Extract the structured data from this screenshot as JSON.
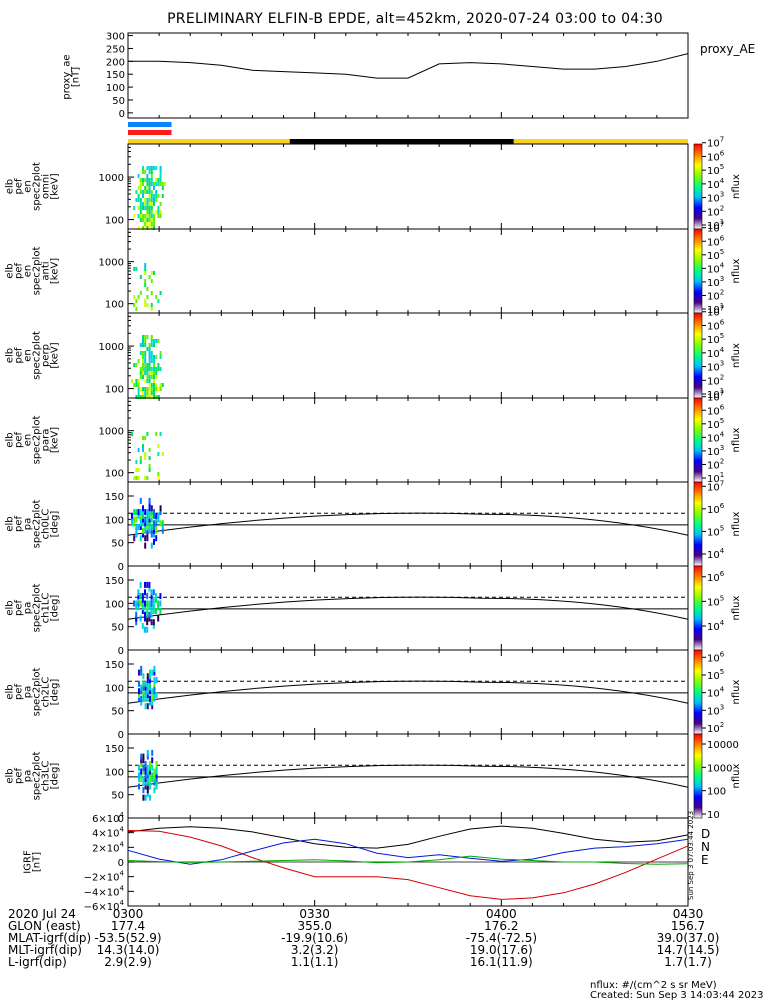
{
  "title": "PRELIMINARY ELFIN-B EPDE, alt=452km, 2020-07-24 03:00 to 04:30",
  "colors": {
    "sci_blue": "#0a84ff",
    "sci_red": "#ff1a1a",
    "day": "#f7d21e",
    "night": "#000000",
    "grf_d": "#d40000",
    "grf_n": "#0018d4",
    "grf_e": "#00aa00",
    "grf_total": "#000000"
  },
  "panels": {
    "proxy_ae": {
      "ylabel_lines": [
        "proxy_ae",
        "[nT]"
      ],
      "legend": "proxy_AE"
    },
    "spec_panels": [
      {
        "ylabel_lines": [
          "elb",
          "pef",
          "en",
          "spec2plot",
          "omni",
          "[keV]"
        ]
      },
      {
        "ylabel_lines": [
          "elb",
          "pef",
          "en",
          "spec2plot",
          "anti",
          "[keV]"
        ]
      },
      {
        "ylabel_lines": [
          "elb",
          "pef",
          "en",
          "spec2plot",
          "perp",
          "[keV]"
        ]
      },
      {
        "ylabel_lines": [
          "elb",
          "pef",
          "en",
          "spec2plot",
          "para",
          "[keV]"
        ]
      }
    ],
    "pa_panels": [
      {
        "ylabel_lines": [
          "elb",
          "pef",
          "pa",
          "spec2plot",
          "ch0LC",
          "[deg]"
        ]
      },
      {
        "ylabel_lines": [
          "elb",
          "pef",
          "pa",
          "spec2plot",
          "ch1LC",
          "[deg]"
        ]
      },
      {
        "ylabel_lines": [
          "elb",
          "pef",
          "pa",
          "spec2plot",
          "ch2LC",
          "[deg]"
        ]
      },
      {
        "ylabel_lines": [
          "elb",
          "pef",
          "pa",
          "spec2plot",
          "ch3LC",
          "[deg]"
        ]
      }
    ],
    "grf": {
      "ylabel_lines": [
        "IGRF",
        "[nT]"
      ],
      "legend": [
        "D",
        "N",
        "E"
      ]
    },
    "colorbar_label": "nflux",
    "colorbar_tick_labels": {
      "energy_bars": [
        "10",
        "10",
        "10",
        "10",
        "10",
        "10",
        "10"
      ],
      "last_bar": [
        "10000",
        "1000",
        "100",
        "10"
      ]
    }
  },
  "chart_data": [
    {
      "type": "line",
      "title": "proxy_ae",
      "x": [
        "03:00",
        "03:05",
        "03:10",
        "03:15",
        "03:20",
        "03:25",
        "03:30",
        "03:35",
        "03:40",
        "03:45",
        "03:50",
        "03:55",
        "04:00",
        "04:05",
        "04:10",
        "04:15",
        "04:20",
        "04:25",
        "04:30"
      ],
      "series": [
        {
          "name": "proxy_AE",
          "values": [
            200,
            200,
            195,
            185,
            165,
            160,
            155,
            150,
            135,
            135,
            190,
            195,
            190,
            180,
            170,
            170,
            180,
            200,
            230
          ]
        }
      ],
      "ylim": [
        0,
        300
      ],
      "yticks": [
        0,
        50,
        100,
        150,
        200,
        250,
        300
      ]
    },
    {
      "type": "bar",
      "title": "science zone / sunlight bars",
      "segments": [
        {
          "label": "science",
          "start": "03:00",
          "end": "03:07",
          "rows": [
            "blue",
            "red"
          ]
        },
        {
          "label": "sunlit",
          "start": "03:00",
          "end": "03:26",
          "color": "yellow"
        },
        {
          "label": "eclipse",
          "start": "03:26",
          "end": "03:62",
          "color": "black"
        },
        {
          "label": "sunlit",
          "start": "03:62",
          "end": "04:30",
          "color": "yellow"
        }
      ]
    },
    {
      "type": "heatmap",
      "title": "omni",
      "ylim": [
        60,
        6000
      ],
      "yscale": "log",
      "yticks": [
        100,
        1000
      ],
      "zlim_exp": [
        1,
        7
      ]
    },
    {
      "type": "heatmap",
      "title": "anti",
      "ylim": [
        60,
        6000
      ],
      "yscale": "log",
      "yticks": [
        100,
        1000
      ],
      "zlim_exp": [
        1,
        7
      ]
    },
    {
      "type": "heatmap",
      "title": "perp",
      "ylim": [
        60,
        6000
      ],
      "yscale": "log",
      "yticks": [
        100,
        1000
      ],
      "zlim_exp": [
        1,
        7
      ]
    },
    {
      "type": "heatmap",
      "title": "para",
      "ylim": [
        60,
        6000
      ],
      "yscale": "log",
      "yticks": [
        100,
        1000
      ],
      "zlim_exp": [
        1,
        7
      ]
    },
    {
      "type": "heatmap",
      "title": "ch0LC",
      "ylim": [
        0,
        180
      ],
      "yticks": [
        0,
        50,
        100,
        150
      ],
      "zticks": [
        "10^4",
        "10^5",
        "10^6",
        "10^7"
      ],
      "lines": {
        "dashed_deg": 113,
        "solid_deg": [
          88,
          66,
          111,
          66
        ]
      }
    },
    {
      "type": "heatmap",
      "title": "ch1LC",
      "ylim": [
        0,
        180
      ],
      "yticks": [
        0,
        50,
        100,
        150
      ],
      "zticks": [
        "10^4",
        "10^5",
        "10^6"
      ],
      "lines": {
        "dashed_deg": 113,
        "solid_deg": [
          88,
          66,
          111,
          66
        ]
      }
    },
    {
      "type": "heatmap",
      "title": "ch2LC",
      "ylim": [
        0,
        180
      ],
      "yticks": [
        0,
        50,
        100,
        150
      ],
      "zticks": [
        "10^2",
        "10^3",
        "10^4",
        "10^5",
        "10^6"
      ],
      "lines": {
        "dashed_deg": 113,
        "solid_deg": [
          88,
          66,
          111,
          66
        ]
      }
    },
    {
      "type": "heatmap",
      "title": "ch3LC",
      "ylim": [
        0,
        180
      ],
      "yticks": [
        0,
        50,
        100,
        150
      ],
      "zticks": [
        "10",
        "100",
        "1000",
        "10000"
      ],
      "lines": {
        "dashed_deg": 113,
        "solid_deg": [
          88,
          66,
          111,
          66
        ]
      }
    },
    {
      "type": "line",
      "title": "IGRF",
      "x": [
        "03:00",
        "03:05",
        "03:10",
        "03:15",
        "03:20",
        "03:25",
        "03:30",
        "03:35",
        "03:40",
        "03:45",
        "03:50",
        "03:55",
        "04:00",
        "04:05",
        "04:10",
        "04:15",
        "04:20",
        "04:25",
        "04:30"
      ],
      "series": [
        {
          "name": "total",
          "values": [
            41000,
            46000,
            48000,
            46000,
            41000,
            33000,
            25000,
            20000,
            19000,
            24000,
            35000,
            45000,
            49000,
            46000,
            39000,
            31000,
            27000,
            29000,
            37000
          ]
        },
        {
          "name": "D",
          "values": [
            43000,
            42000,
            34000,
            22000,
            6000,
            -8000,
            -20000,
            -20000,
            -20000,
            -24000,
            -35000,
            -46000,
            -51000,
            -49000,
            -42000,
            -30000,
            -14000,
            4000,
            22000
          ]
        },
        {
          "name": "N",
          "values": [
            16000,
            4000,
            -3000,
            3000,
            15000,
            26000,
            31000,
            25000,
            12000,
            6000,
            10000,
            5000,
            1000,
            4000,
            13000,
            19000,
            21000,
            25000,
            31000
          ]
        },
        {
          "name": "E",
          "values": [
            2000,
            500,
            -500,
            0,
            1000,
            2000,
            3000,
            1500,
            -1000,
            0,
            3000,
            8000,
            4000,
            2000,
            0,
            0,
            -2000,
            -3000,
            -2500
          ]
        }
      ],
      "ylim": [
        -60000,
        60000
      ],
      "yticks": [
        -60000,
        -40000,
        -20000,
        0,
        20000,
        40000,
        60000
      ]
    }
  ],
  "x_axis": {
    "tick_labels": [
      "0300",
      "0330",
      "0400",
      "0430"
    ],
    "rows": [
      {
        "label": "2020 Jul 24",
        "values": [
          "0300",
          "0330",
          "0400",
          "0430"
        ]
      },
      {
        "label": "GLON (east)",
        "values": [
          "177.4",
          "355.0",
          "176.2",
          "156.7"
        ]
      },
      {
        "label": "MLAT-igrf(dip)",
        "values": [
          "-53.5(52.9)",
          "-19.9(10.6)",
          "-75.4(-72.5)",
          "39.0(37.0)"
        ]
      },
      {
        "label": "MLT-igrf(dip)",
        "values": [
          "14.3(14.0)",
          "3.2(3.2)",
          "19.0(17.6)",
          "14.7(14.5)"
        ]
      },
      {
        "label": "L-igrf(dip)",
        "values": [
          "2.9(2.9)",
          "1.1(1.1)",
          "16.1(11.9)",
          "1.7(1.7)"
        ]
      }
    ]
  },
  "footer": {
    "units": "nflux: #/(cm^2 s sr MeV)",
    "created": "Created: Sun Sep  3 14:03:44 2023",
    "side_stamp": "Sun Sep 3 07:03:44 2023"
  }
}
